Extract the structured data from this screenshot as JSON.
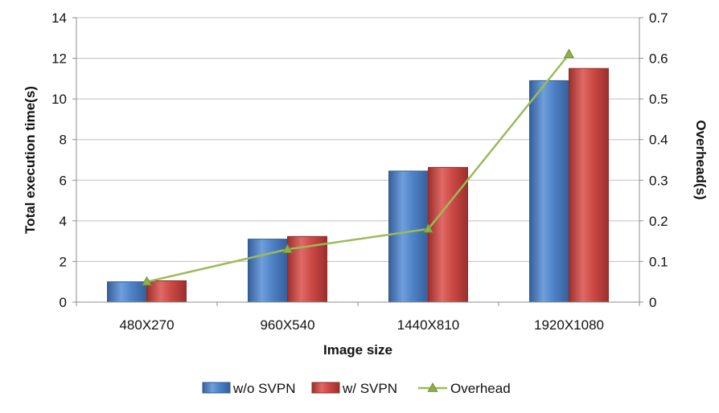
{
  "chart_data": {
    "type": "bar",
    "categories": [
      "480X270",
      "960X540",
      "1440X810",
      "1920X1080"
    ],
    "series": [
      {
        "name": "w/o SVPN",
        "kind": "bar",
        "axis": "left",
        "color": "#4a7ebb",
        "values": [
          1.0,
          3.1,
          6.45,
          10.9
        ]
      },
      {
        "name": "w/ SVPN",
        "kind": "bar",
        "axis": "left",
        "color": "#c0504d",
        "values": [
          1.05,
          3.23,
          6.63,
          11.5
        ]
      },
      {
        "name": "Overhead",
        "kind": "line",
        "axis": "right",
        "color": "#9bbb59",
        "marker": "triangle",
        "values": [
          0.05,
          0.13,
          0.18,
          0.61
        ]
      }
    ],
    "xlabel": "Image size",
    "ylabel": "Total execution time(s)",
    "y2label": "Overhead(s)",
    "ylim": [
      0,
      14
    ],
    "yticks": [
      "0",
      "2",
      "4",
      "6",
      "8",
      "10",
      "12",
      "14"
    ],
    "y2lim": [
      0,
      0.7
    ],
    "y2ticks": [
      "0",
      "0.1",
      "0.2",
      "0.3",
      "0.4",
      "0.5",
      "0.6",
      "0.7"
    ],
    "grid": true,
    "legend_position": "bottom"
  }
}
